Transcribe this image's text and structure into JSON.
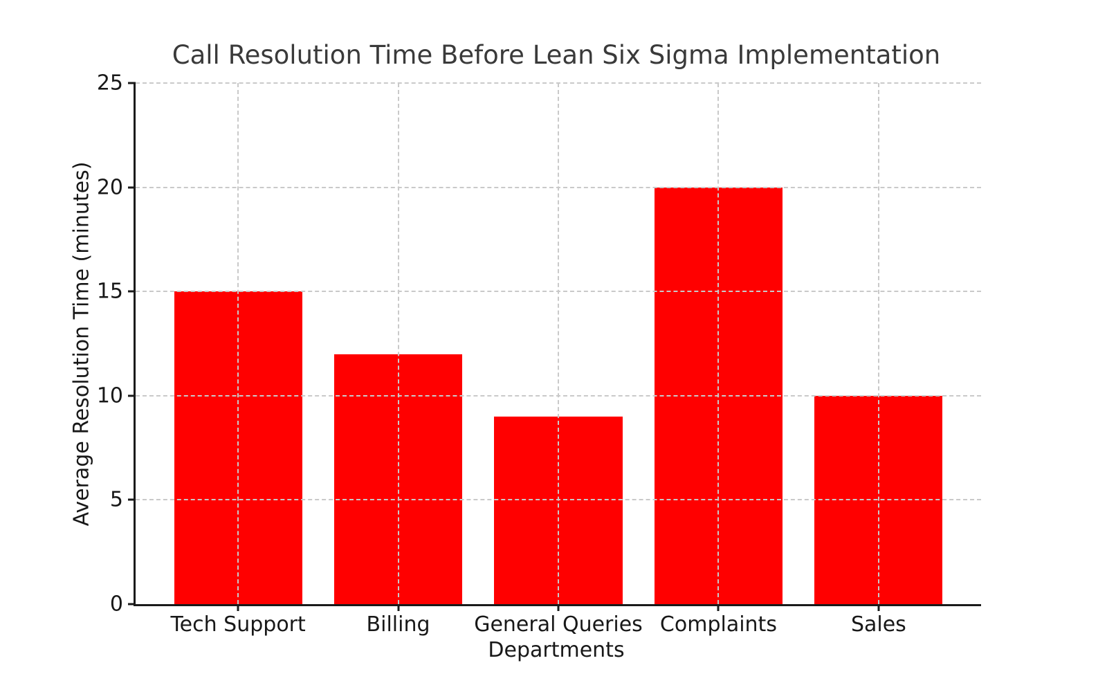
{
  "chart_data": {
    "type": "bar",
    "title": "Call Resolution Time Before Lean Six Sigma Implementation",
    "xlabel": "Departments",
    "ylabel": "Average Resolution Time (minutes)",
    "categories": [
      "Tech Support",
      "Billing",
      "General Queries",
      "Complaints",
      "Sales"
    ],
    "values": [
      15,
      12,
      9,
      20,
      10
    ],
    "ylim": [
      0,
      25
    ],
    "yticks": [
      0,
      5,
      10,
      15,
      20,
      25
    ],
    "bar_color": "#ff0000",
    "grid": "on",
    "grid_style": "dashed",
    "grid_color": "#c9c9c9",
    "grid_above_bars": "true",
    "legend": "none",
    "axis_color": "#1a1a1a",
    "title_color": "#3a3a3a",
    "text_color": "#181818",
    "background_color": "#ffffff"
  }
}
